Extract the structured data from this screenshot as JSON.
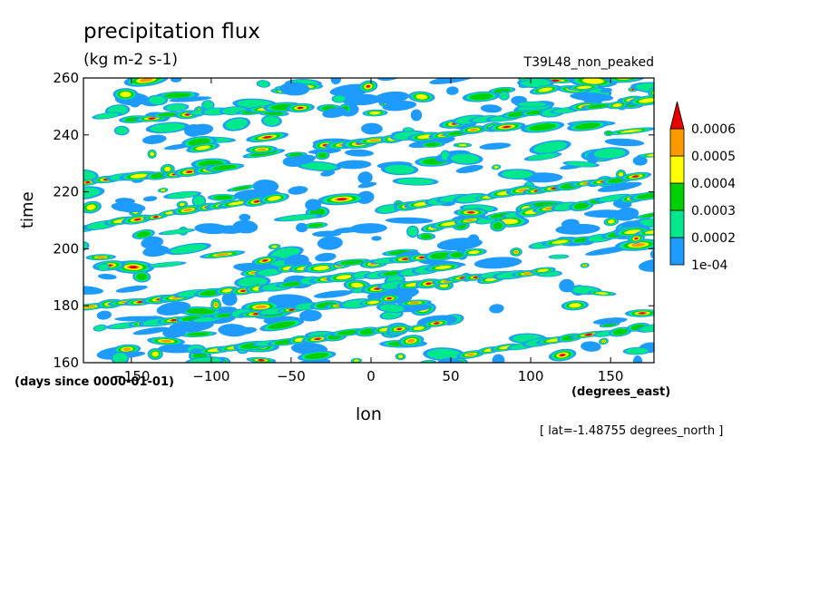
{
  "chart_data": {
    "type": "heatmap",
    "title": "precipitation flux",
    "units": "(kg m-2 s-1)",
    "run_label": "T39L48_non_peaked",
    "xlabel": "lon",
    "x_units": "(degrees_east)",
    "ylabel": "time",
    "y_units": "(days since 0000-01-01)",
    "annotation": "[ lat=-1.48755 degrees_north ]",
    "x_range": [
      -180,
      177.2
    ],
    "y_range": [
      160,
      260
    ],
    "x_ticks": [
      -150,
      -100,
      -50,
      0,
      50,
      100,
      150
    ],
    "y_ticks": [
      160,
      180,
      200,
      220,
      240,
      260
    ],
    "colorbar": {
      "levels": [
        "1e-04",
        "0.0002",
        "0.0003",
        "0.0004",
        "0.0005",
        "0.0006"
      ],
      "colors": [
        "#1e9bff",
        "#00e88c",
        "#00d000",
        "#ffff00",
        "#ff9900",
        "#e60000"
      ],
      "extend": "max"
    }
  }
}
